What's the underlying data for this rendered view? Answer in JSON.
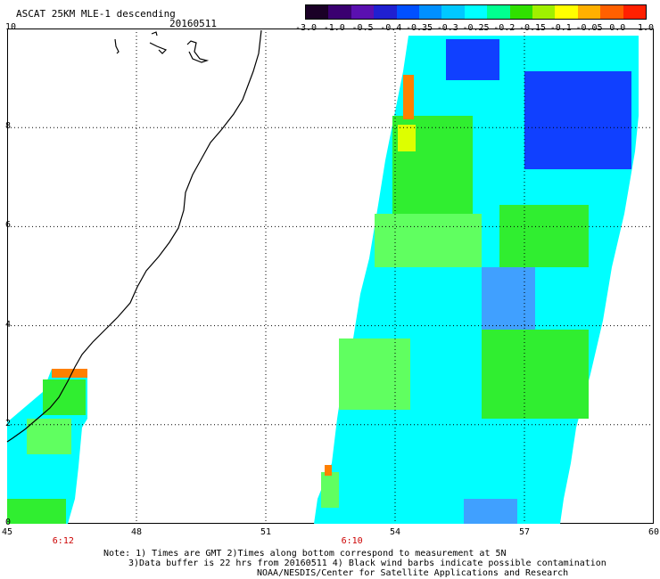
{
  "title": "ASCAT 25KM MLE-1 descending",
  "date": "20160511",
  "colorbar": {
    "ticks": [
      "-3.0",
      "-1.0",
      "-0.5",
      "-0.4",
      "-0.35",
      "-0.3",
      "-0.25",
      "-0.2",
      "-0.15",
      "-0.1",
      "-0.05",
      "0.0",
      "1.0"
    ],
    "colors": [
      "#1a0026",
      "#3a0070",
      "#5a10b0",
      "#2020d0",
      "#0050ff",
      "#0090ff",
      "#00c8ff",
      "#00ffff",
      "#00ff90",
      "#30e000",
      "#a0f000",
      "#ffff00",
      "#ffb000",
      "#ff6000",
      "#ff2000"
    ]
  },
  "axes": {
    "x_ticks": [
      "45",
      "48",
      "51",
      "54",
      "57",
      "60"
    ],
    "y_ticks": [
      "0",
      "2",
      "4",
      "6",
      "8",
      "10"
    ],
    "x_range": [
      45,
      60
    ],
    "y_range": [
      0,
      10
    ]
  },
  "times": [
    {
      "lon": 46.3,
      "label": "6:12"
    },
    {
      "lon": 53.0,
      "label": "6:10"
    }
  ],
  "notes": {
    "line1": "Note: 1) Times are GMT 2)Times along bottom correspond to measurement at 5N",
    "line2": "3)Data buffer is 22 hrs from 20160511 4) Black wind barbs indicate possible contamination",
    "line3": "NOAA/NESDIS/Center for Satellite Applications and Research"
  },
  "colors": {
    "cyan": "#00ffff",
    "green": "#30ee30",
    "light_green": "#60ff60",
    "blue": "#1040ff",
    "light_blue": "#40a0ff",
    "yellow": "#ddff00",
    "orange": "#ff8000",
    "coast": "#000000"
  }
}
